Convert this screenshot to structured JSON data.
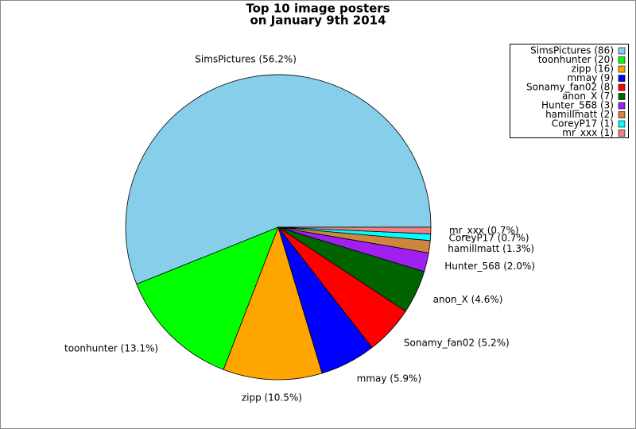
{
  "chart_data": {
    "type": "pie",
    "title": "Top 10 image posters",
    "subtitle": "on January 9th 2014",
    "categories": [
      "SimsPictures",
      "toonhunter",
      "zipp",
      "mmay",
      "Sonamy_fan02",
      "anon_X",
      "Hunter_568",
      "hamillmatt",
      "CoreyP17",
      "mr_xxx"
    ],
    "values": [
      56.2,
      13.1,
      10.5,
      5.9,
      5.2,
      4.6,
      2.0,
      1.3,
      0.7,
      0.7
    ],
    "value_labels": [
      "SimsPictures (56.2%)",
      "toonhunter (13.1%)",
      "zipp (10.5%)",
      "mmay (5.9%)",
      "Sonamy_fan02 (5.2%)",
      "anon_X (4.6%)",
      "Hunter_568 (2.0%)",
      "hamillmatt (1.3%)",
      "CoreyP17 (0.7%)",
      "mr_xxx (0.7%)"
    ],
    "legend_labels": [
      "SimsPictures (86)",
      "toonhunter (20)",
      "zipp (16)",
      "mmay (9)",
      "Sonamy_fan02 (8)",
      "anon_X (7)",
      "Hunter_568 (3)",
      "hamillmatt (2)",
      "CoreyP17 (1)",
      "mr_xxx (1)"
    ],
    "colors": [
      "#87ceeb",
      "#00ff00",
      "#ffa500",
      "#0000ff",
      "#ff0000",
      "#006400",
      "#a020f0",
      "#cd853f",
      "#00ffff",
      "#f08080"
    ],
    "legend_position": "upper right"
  }
}
